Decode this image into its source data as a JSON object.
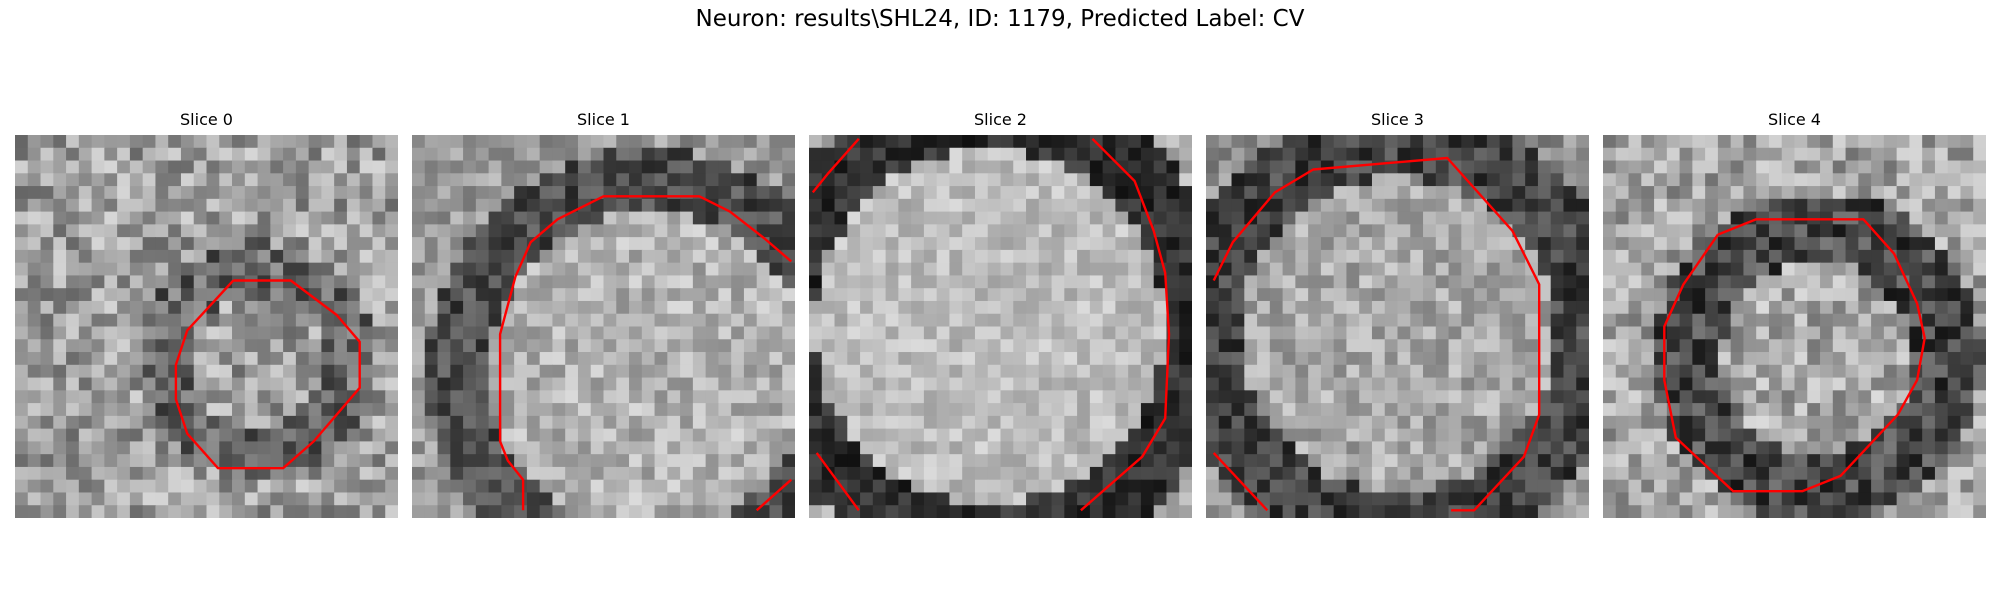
{
  "title": "Neuron: results\\SHL24, ID: 1179, Predicted Label: CV",
  "colormap": "gray",
  "contour_color": "#ff0000",
  "slices": [
    {
      "title": "Slice 0"
    },
    {
      "title": "Slice 1"
    },
    {
      "title": "Slice 2"
    },
    {
      "title": "Slice 3"
    },
    {
      "title": "Slice 4"
    }
  ]
}
